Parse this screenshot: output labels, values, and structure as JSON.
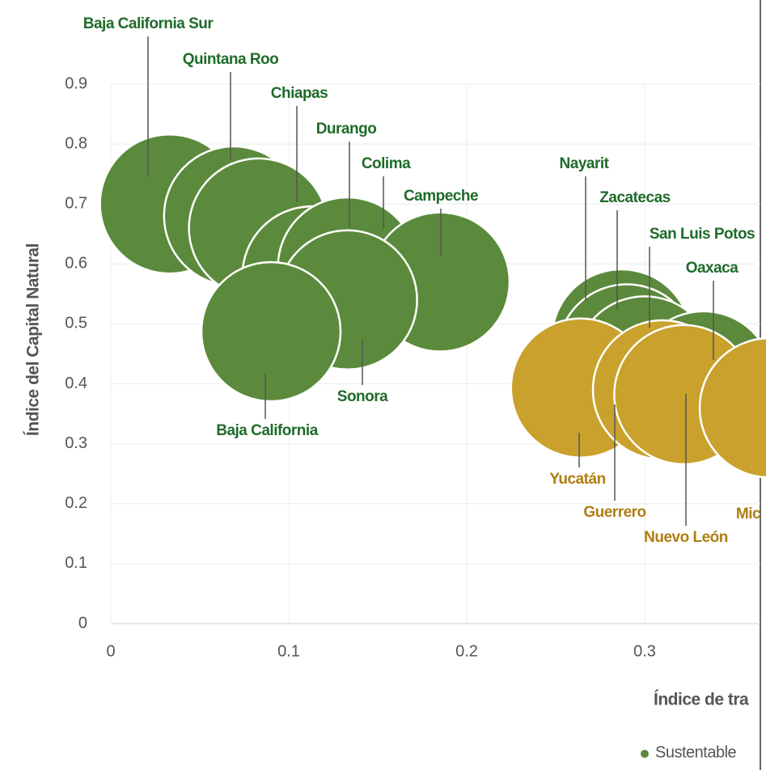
{
  "chart_data": {
    "type": "bubble",
    "x_label": "Índice de tra",
    "y_label": "Índice del Capital Natural",
    "xlim": [
      0,
      0.365
    ],
    "ylim": [
      0,
      0.9
    ],
    "xticks": [
      0,
      0.1,
      0.2,
      0.3
    ],
    "yticks": [
      0,
      0.1,
      0.2,
      0.3,
      0.4,
      0.5,
      0.6,
      0.7,
      0.8,
      0.9
    ],
    "grid": true,
    "series": [
      {
        "name": "Sustentable",
        "color": "#5b8a3c",
        "label_color": "#1f6b2a",
        "labels": [
          "Baja California Sur",
          "Quintana Roo",
          "Chiapas",
          "Durango",
          "Colima",
          "Campeche",
          "Sonora",
          "Baja California",
          "Nayarit",
          "Zacatecas",
          "San Luis Potos",
          "Oaxaca"
        ],
        "x": [
          0.033,
          0.069,
          0.083,
          0.113,
          0.133,
          0.185,
          0.133,
          0.09,
          0.287,
          0.29,
          0.3,
          0.333
        ],
        "values": [
          0.7,
          0.68,
          0.66,
          0.58,
          0.595,
          0.57,
          0.54,
          0.487,
          0.475,
          0.45,
          0.43,
          0.405
        ]
      },
      {
        "color": "#c9a12c",
        "label_color": "#b07d12",
        "labels": [
          "Yucatán",
          "Guerrero",
          "Nuevo León",
          "Mic"
        ],
        "x": [
          0.264,
          0.31,
          0.322,
          0.37
        ],
        "values": [
          0.393,
          0.39,
          0.382,
          0.36
        ]
      }
    ],
    "legend": "bottom-right"
  }
}
